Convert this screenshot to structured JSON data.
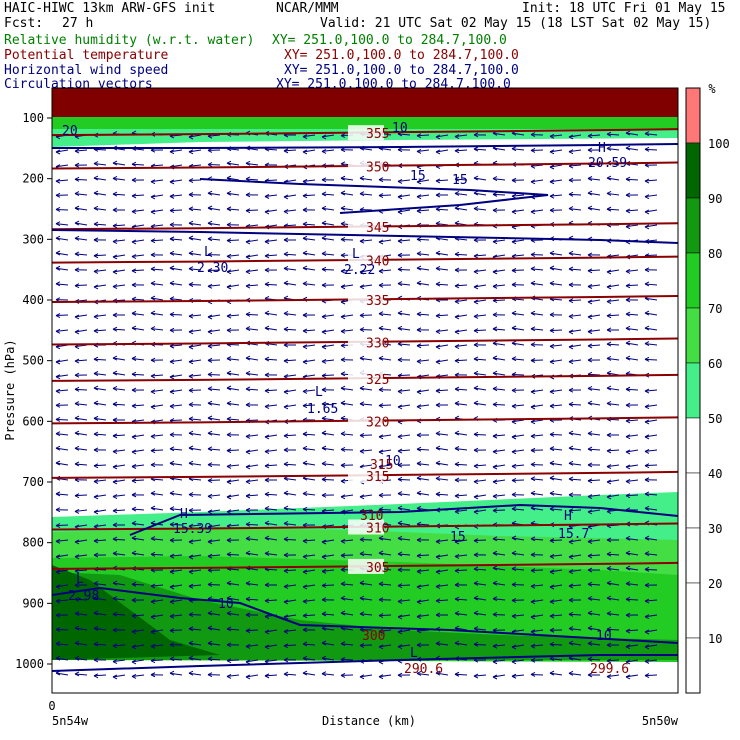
{
  "header": {
    "model": "HAIC-HIWC 13km ARW-GFS init",
    "org": "NCAR/MMM",
    "init": "Init: 18 UTC Fri 01 May 15",
    "fcst_label": "Fcst:",
    "fcst_value": "27 h",
    "valid": "Valid: 21 UTC Sat 02 May 15 (18 LST Sat 02 May 15)",
    "fields": [
      {
        "name": "Relative humidity (w.r.t. water)",
        "color": "#008000",
        "xy": "XY= 251.0,100.0 to 284.7,100.0"
      },
      {
        "name": "Potential temperature",
        "color": "#8b0000",
        "xy": "XY= 251.0,100.0 to 284.7,100.0"
      },
      {
        "name": "Horizontal wind speed",
        "color": "#000080",
        "xy": "XY= 251.0,100.0 to 284.7,100.0"
      },
      {
        "name": "Circulation vectors",
        "color": "#000080",
        "xy": "XY= 251.0,100.0 to 284.7,100.0"
      }
    ]
  },
  "colorbar": {
    "unit": "%",
    "levels": [
      10,
      20,
      30,
      40,
      50,
      60,
      70,
      80,
      90,
      100
    ],
    "colors": [
      "#ffffff",
      "#ffffff",
      "#ffffff",
      "#ffffff",
      "#ffffff",
      "#44ee88",
      "#44dd44",
      "#22cc22",
      "#119911",
      "#006600",
      "#ff7777"
    ]
  },
  "chart_data": {
    "type": "heatmap",
    "xlabel": "Distance (km)",
    "ylabel": "Pressure (hPa)",
    "x_tick_top": "0",
    "x_left_label": "5n54w",
    "x_right_label": "5n50w",
    "y_ticks": [
      100,
      200,
      300,
      400,
      500,
      600,
      700,
      800,
      900,
      1000
    ],
    "ylim": [
      1000,
      100
    ],
    "theta_contour_labels": [
      "310",
      "315",
      "320",
      "325",
      "330",
      "335",
      "340",
      "345",
      "350",
      "355",
      "305",
      "300",
      "290.6",
      "299.6"
    ],
    "theta_levels": [
      {
        "value": "355",
        "p": 125
      },
      {
        "value": "350",
        "p": 180
      },
      {
        "value": "345",
        "p": 280
      },
      {
        "value": "340",
        "p": 335
      },
      {
        "value": "335",
        "p": 400
      },
      {
        "value": "330",
        "p": 470
      },
      {
        "value": "325",
        "p": 530
      },
      {
        "value": "320",
        "p": 600
      },
      {
        "value": "315",
        "p": 690
      },
      {
        "value": "310",
        "p": 775
      },
      {
        "value": "305",
        "p": 840
      }
    ],
    "wind_labels": [
      {
        "text": "10",
        "kind": "contour"
      },
      {
        "text": "15",
        "kind": "contour"
      },
      {
        "text": "15",
        "kind": "contour"
      },
      {
        "text": "H",
        "kind": "extremum"
      },
      {
        "text": "20.59",
        "kind": "value"
      },
      {
        "text": "L",
        "kind": "extremum"
      },
      {
        "text": "2.30",
        "kind": "value"
      },
      {
        "text": "L",
        "kind": "extremum"
      },
      {
        "text": "2.22",
        "kind": "value"
      },
      {
        "text": "L",
        "kind": "extremum"
      },
      {
        "text": "1.65",
        "kind": "value"
      },
      {
        "text": "10",
        "kind": "contour"
      },
      {
        "text": "H",
        "kind": "extremum"
      },
      {
        "text": "15.39",
        "kind": "value"
      },
      {
        "text": "15",
        "kind": "contour"
      },
      {
        "text": "H",
        "kind": "extremum"
      },
      {
        "text": "15.7",
        "kind": "value"
      },
      {
        "text": "L",
        "kind": "extremum"
      },
      {
        "text": "2.98",
        "kind": "value"
      },
      {
        "text": "10",
        "kind": "contour"
      },
      {
        "text": "10",
        "kind": "contour"
      },
      {
        "text": "L",
        "kind": "extremum"
      },
      {
        "text": "20",
        "kind": "contour"
      }
    ],
    "grid": false
  }
}
